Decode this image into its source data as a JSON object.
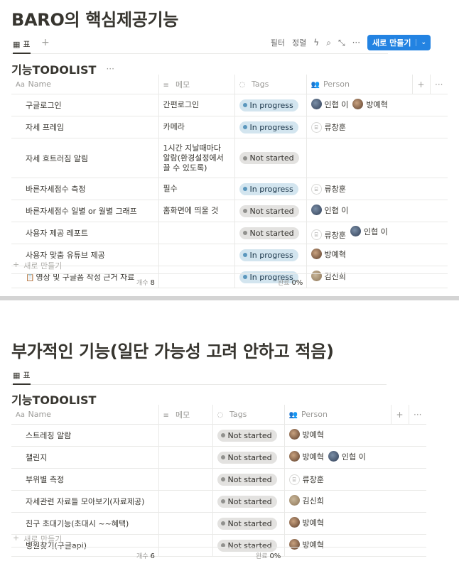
{
  "section1": {
    "title": "BARO의 핵심제공기능",
    "view_label": "표",
    "toolbar": {
      "filter": "필터",
      "sort": "정렬",
      "new_button": "새로 만들기"
    },
    "db_title": "기능TODOLIST",
    "columns": {
      "name": "Name",
      "memo": "메모",
      "tags": "Tags",
      "person": "Person"
    },
    "rows": [
      {
        "name": "구글로그인",
        "memo": "간편로그인",
        "tag": "In progress",
        "people": [
          {
            "name": "인협 이",
            "avatar": "dark"
          },
          {
            "name": "방예혁",
            "avatar": "photo"
          }
        ]
      },
      {
        "name": "자세 프레임",
        "memo": "카메라",
        "tag": "In progress",
        "people": [
          {
            "name": "류창훈",
            "avatar": "none"
          }
        ]
      },
      {
        "name": "자세 흐트러짐 알림",
        "memo": "1시간 지날때마다 알람(환경설정에서 끌 수 있도록)",
        "tag": "Not started",
        "people": []
      },
      {
        "name": "바른자세점수 측정",
        "memo": "필수",
        "tag": "In progress",
        "people": [
          {
            "name": "류창훈",
            "avatar": "none"
          }
        ]
      },
      {
        "name": "바른자세점수 일별 or 월별 그래프",
        "memo": "홈화면에 띄울 것",
        "tag": "Not started",
        "people": [
          {
            "name": "인협 이",
            "avatar": "dark"
          }
        ]
      },
      {
        "name": "사용자 제공 레포트",
        "memo": "",
        "tag": "Not started",
        "people": [
          {
            "name": "류창훈",
            "avatar": "none"
          },
          {
            "name": "인협 이",
            "avatar": "dark"
          }
        ]
      },
      {
        "name": "사용자 맞춤 유튜브 제공",
        "memo": "",
        "tag": "In progress",
        "people": [
          {
            "name": "방예혁",
            "avatar": "photo"
          }
        ]
      },
      {
        "name": "영상 및 구글폼 작성 근거 자료",
        "memo": "",
        "tag": "In progress",
        "people": [
          {
            "name": "김신희",
            "avatar": "tan"
          }
        ],
        "doc_icon": true
      }
    ],
    "add_row": "새로 만들기",
    "footer": {
      "count_label": "개수",
      "count": "8",
      "done_label": "완료",
      "done": "0%"
    }
  },
  "section2": {
    "title": "부가적인 기능(일단 가능성 고려 안하고 적음)",
    "view_label": "표",
    "db_title": "기능TODOLIST",
    "columns": {
      "name": "Name",
      "memo": "메모",
      "tags": "Tags",
      "person": "Person"
    },
    "rows": [
      {
        "name": "스트레칭 알람",
        "memo": "",
        "tag": "Not started",
        "people": [
          {
            "name": "방예혁",
            "avatar": "photo"
          }
        ]
      },
      {
        "name": "챌린지",
        "memo": "",
        "tag": "Not started",
        "people": [
          {
            "name": "방예혁",
            "avatar": "photo"
          },
          {
            "name": "인협 이",
            "avatar": "dark"
          }
        ]
      },
      {
        "name": "부위별 측정",
        "memo": "",
        "tag": "Not started",
        "people": [
          {
            "name": "류창훈",
            "avatar": "none"
          }
        ]
      },
      {
        "name": "자세관련 자료들 모아보기(자료제공)",
        "memo": "",
        "tag": "Not started",
        "people": [
          {
            "name": "김신희",
            "avatar": "tan"
          }
        ]
      },
      {
        "name": "친구 초대기능(초대시 ~~혜택)",
        "memo": "",
        "tag": "Not started",
        "people": [
          {
            "name": "방예혁",
            "avatar": "photo"
          }
        ]
      },
      {
        "name": "병원찾기(구글api)",
        "memo": "",
        "tag": "Not started",
        "people": [
          {
            "name": "방예혁",
            "avatar": "photo"
          }
        ]
      }
    ],
    "add_row": "새로 만들기",
    "footer": {
      "count_label": "개수",
      "count": "6",
      "done_label": "완료",
      "done": "0%"
    }
  }
}
